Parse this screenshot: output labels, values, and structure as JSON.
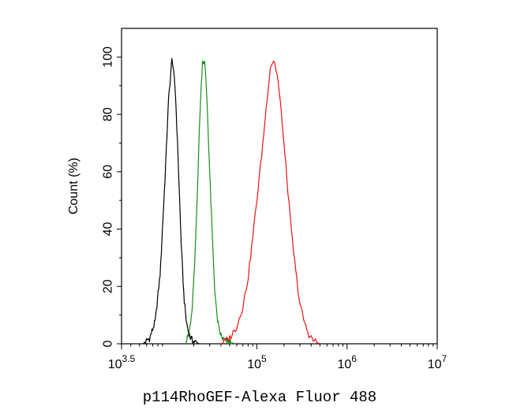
{
  "chart_data": {
    "type": "line",
    "title": "",
    "xlabel": "p114RhoGEF-Alexa Fluor 488",
    "ylabel": "Count (%)",
    "x_scale": "log10",
    "xlim": [
      3162,
      10000000
    ],
    "ylim": [
      0,
      110
    ],
    "x_ticks": [
      {
        "base": "10",
        "exp": "3.5",
        "value": 3162
      },
      {
        "base": "10",
        "exp": "5",
        "value": 100000
      },
      {
        "base": "10",
        "exp": "6",
        "value": 1000000
      },
      {
        "base": "10",
        "exp": "7",
        "value": 10000000
      }
    ],
    "y_ticks": [
      "0",
      "20",
      "40",
      "60",
      "80",
      "100"
    ],
    "y_tick_values": [
      0,
      20,
      40,
      60,
      80,
      100
    ],
    "grid": false,
    "legend": "none",
    "series": [
      {
        "color": "#000000",
        "x": [
          5500,
          6500,
          7500,
          8500,
          9500,
          10500,
          11500,
          12500,
          13500,
          14500,
          15500,
          16500,
          17500,
          18500,
          19500,
          21000,
          23000
        ],
        "y": [
          0,
          2,
          8,
          25,
          55,
          85,
          100,
          88,
          62,
          35,
          17,
          8,
          4,
          2,
          1,
          0.5,
          0
        ]
      },
      {
        "color": "#1a8c1a",
        "x": [
          16000,
          17500,
          19000,
          20500,
          22000,
          23500,
          25000,
          26500,
          28000,
          30000,
          32000,
          34000,
          36000,
          38000,
          41000,
          45000,
          50000,
          58000
        ],
        "y": [
          0,
          3,
          10,
          28,
          55,
          82,
          99,
          98,
          85,
          60,
          38,
          20,
          10,
          5,
          2,
          1,
          0.5,
          0
        ]
      },
      {
        "color": "#ee1111",
        "x": [
          40000,
          50000,
          60000,
          70000,
          80000,
          90000,
          100000,
          115000,
          130000,
          142000,
          155000,
          170000,
          190000,
          215000,
          240000,
          270000,
          300000,
          340000,
          380000,
          430000,
          500000
        ],
        "y": [
          0,
          2,
          6,
          13,
          23,
          37,
          50,
          68,
          86,
          97,
          99,
          93,
          78,
          58,
          40,
          25,
          14,
          7,
          3,
          1,
          0
        ]
      }
    ]
  }
}
